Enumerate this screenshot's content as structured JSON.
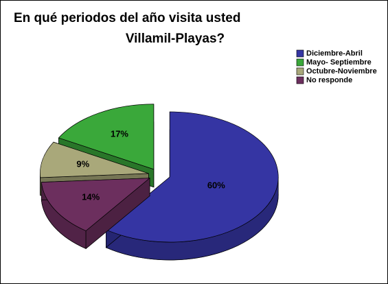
{
  "chart_data": {
    "type": "pie",
    "title": [
      "En qué periodos del año visita usted",
      "Villamil-Playas?"
    ],
    "categories": [
      "Diciembre-Abril",
      "Mayo- Septiembre",
      "Octubre-Noviembre",
      "No responde"
    ],
    "values": [
      60,
      17,
      9,
      14
    ],
    "value_labels": [
      "60%",
      "17%",
      "9%",
      "14%"
    ],
    "colors": [
      "#3535a3",
      "#3aa83a",
      "#a9a87a",
      "#6c2f5e"
    ],
    "legend": "upper right",
    "three_d": true
  }
}
